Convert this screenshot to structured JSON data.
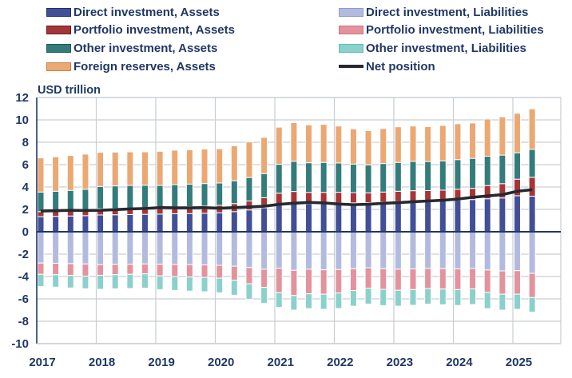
{
  "page": {
    "unit_label": "USD trillion"
  },
  "colors": {
    "text": "#1F3864",
    "axis": "#1F3864",
    "grid": "#C9CDD3",
    "segment_outline": "#FFFFFF",
    "net_line": "#26292E"
  },
  "chart_data": {
    "type": "bar",
    "stacked": true,
    "title": "",
    "ylabel": "USD trillion",
    "xlabel": "",
    "ylim": [
      -10,
      12
    ],
    "y_tick_step": 2,
    "y_ticks": [
      12,
      10,
      8,
      6,
      4,
      2,
      0,
      -2,
      -4,
      -6,
      -8,
      -10
    ],
    "grid": true,
    "legend_position": "top",
    "categories": [
      "2017-Q1",
      "2017-Q2",
      "2017-Q3",
      "2017-Q4",
      "2018-Q1",
      "2018-Q2",
      "2018-Q3",
      "2018-Q4",
      "2019-Q1",
      "2019-Q2",
      "2019-Q3",
      "2019-Q4",
      "2020-Q1",
      "2020-Q2",
      "2020-Q3",
      "2020-Q4",
      "2021-Q1",
      "2021-Q2",
      "2021-Q3",
      "2021-Q4",
      "2022-Q1",
      "2022-Q2",
      "2022-Q3",
      "2022-Q4",
      "2023-Q1",
      "2023-Q2",
      "2023-Q3",
      "2023-Q4",
      "2024-Q1",
      "2024-Q2",
      "2024-Q3",
      "2024-Q4",
      "2025-Q1",
      "2025-Q2"
    ],
    "year_labels": [
      "2017",
      "2018",
      "2019",
      "2020",
      "2021",
      "2022",
      "2023",
      "2024",
      "2025"
    ],
    "series": [
      {
        "name": "Direct investment, Assets",
        "key": "direct-assets",
        "color": "#424F97",
        "border": "#252F66",
        "values": [
          1.35,
          1.38,
          1.41,
          1.44,
          1.5,
          1.52,
          1.54,
          1.56,
          1.58,
          1.61,
          1.63,
          1.65,
          1.7,
          1.8,
          1.95,
          2.15,
          2.45,
          2.55,
          2.5,
          2.52,
          2.55,
          2.58,
          2.6,
          2.65,
          2.7,
          2.75,
          2.78,
          2.8,
          2.85,
          2.88,
          2.95,
          3.02,
          3.22,
          3.18
        ]
      },
      {
        "name": "Portfolio investment, Assets",
        "key": "portfolio-assets",
        "color": "#A63538",
        "border": "#6E1B1E",
        "values": [
          0.45,
          0.46,
          0.48,
          0.5,
          0.55,
          0.56,
          0.56,
          0.55,
          0.58,
          0.6,
          0.62,
          0.64,
          0.66,
          0.72,
          0.8,
          0.9,
          1.0,
          1.05,
          1.02,
          1.0,
          0.98,
          0.92,
          0.88,
          0.9,
          0.92,
          0.92,
          0.9,
          0.92,
          0.95,
          1.0,
          1.18,
          1.28,
          1.48,
          1.69
        ]
      },
      {
        "name": "Other investment, Assets",
        "key": "other-assets",
        "color": "#337C7B",
        "border": "#1E5A59",
        "values": [
          1.75,
          1.78,
          1.81,
          1.86,
          2.0,
          2.02,
          2.04,
          2.05,
          1.98,
          2.0,
          2.01,
          2.02,
          2.0,
          2.04,
          2.1,
          2.15,
          2.58,
          2.7,
          2.65,
          2.68,
          2.62,
          2.55,
          2.5,
          2.55,
          2.58,
          2.62,
          2.6,
          2.62,
          2.65,
          2.68,
          2.62,
          2.55,
          2.36,
          2.49
        ]
      },
      {
        "name": "Foreign reserves, Assets",
        "key": "foreign-reserves",
        "color": "#EBA873",
        "border": "#C88443",
        "values": [
          3.05,
          3.08,
          3.11,
          3.14,
          3.05,
          3.02,
          3.0,
          2.98,
          3.05,
          3.08,
          3.07,
          3.08,
          3.06,
          3.12,
          3.18,
          3.24,
          3.32,
          3.45,
          3.38,
          3.4,
          3.3,
          3.15,
          3.05,
          3.13,
          3.18,
          3.16,
          3.12,
          3.16,
          3.2,
          3.16,
          3.33,
          3.42,
          3.53,
          3.63
        ]
      },
      {
        "name": "Direct investment, Liabilities",
        "key": "direct-liabilities",
        "color": "#B2BBDF",
        "border": "#8C9BD0",
        "values": [
          -2.8,
          -2.82,
          -2.85,
          -2.88,
          -2.94,
          -2.92,
          -2.9,
          -2.88,
          -2.9,
          -2.92,
          -2.94,
          -2.96,
          -3.0,
          -3.08,
          -3.2,
          -3.35,
          -3.25,
          -3.45,
          -3.35,
          -3.4,
          -3.38,
          -3.3,
          -3.22,
          -3.3,
          -3.35,
          -3.32,
          -3.28,
          -3.3,
          -3.32,
          -3.28,
          -3.42,
          -3.5,
          -3.48,
          -3.72
        ]
      },
      {
        "name": "Portfolio investment, Liabilities",
        "key": "portfolio-liabilities",
        "color": "#E2939D",
        "border": "#D4707E",
        "values": [
          -1.0,
          -1.02,
          -1.05,
          -1.08,
          -0.95,
          -0.92,
          -0.9,
          -0.88,
          -1.05,
          -1.08,
          -1.1,
          -1.12,
          -1.15,
          -1.25,
          -1.45,
          -1.62,
          -2.2,
          -2.25,
          -2.2,
          -2.18,
          -2.1,
          -1.95,
          -1.82,
          -1.85,
          -1.88,
          -1.85,
          -1.8,
          -1.82,
          -1.85,
          -1.82,
          -2.0,
          -2.08,
          -2.1,
          -2.16
        ]
      },
      {
        "name": "Other investment, Liabilities",
        "key": "other-liabilities",
        "color": "#8BD1CB",
        "border": "#62BDB6",
        "values": [
          -1.1,
          -1.11,
          -1.12,
          -1.13,
          -1.25,
          -1.26,
          -1.27,
          -1.28,
          -1.22,
          -1.24,
          -1.26,
          -1.28,
          -1.3,
          -1.34,
          -1.38,
          -1.42,
          -1.3,
          -1.3,
          -1.32,
          -1.35,
          -1.38,
          -1.4,
          -1.42,
          -1.45,
          -1.42,
          -1.4,
          -1.38,
          -1.4,
          -1.42,
          -1.4,
          -1.45,
          -1.42,
          -1.35,
          -1.3
        ]
      }
    ],
    "line_series": {
      "name": "Net position",
      "key": "net-position",
      "color": "#26292E",
      "values": [
        1.85,
        1.88,
        1.92,
        1.9,
        1.92,
        1.98,
        2.04,
        2.08,
        2.16,
        2.14,
        2.14,
        2.16,
        2.1,
        2.16,
        2.22,
        2.28,
        2.45,
        2.55,
        2.62,
        2.58,
        2.48,
        2.42,
        2.46,
        2.54,
        2.6,
        2.68,
        2.75,
        2.82,
        2.92,
        3.08,
        3.2,
        3.32,
        3.62,
        3.76
      ]
    },
    "legend_left_series": [
      0,
      1,
      2,
      3
    ],
    "legend_right_series": [
      4,
      5,
      6
    ]
  }
}
